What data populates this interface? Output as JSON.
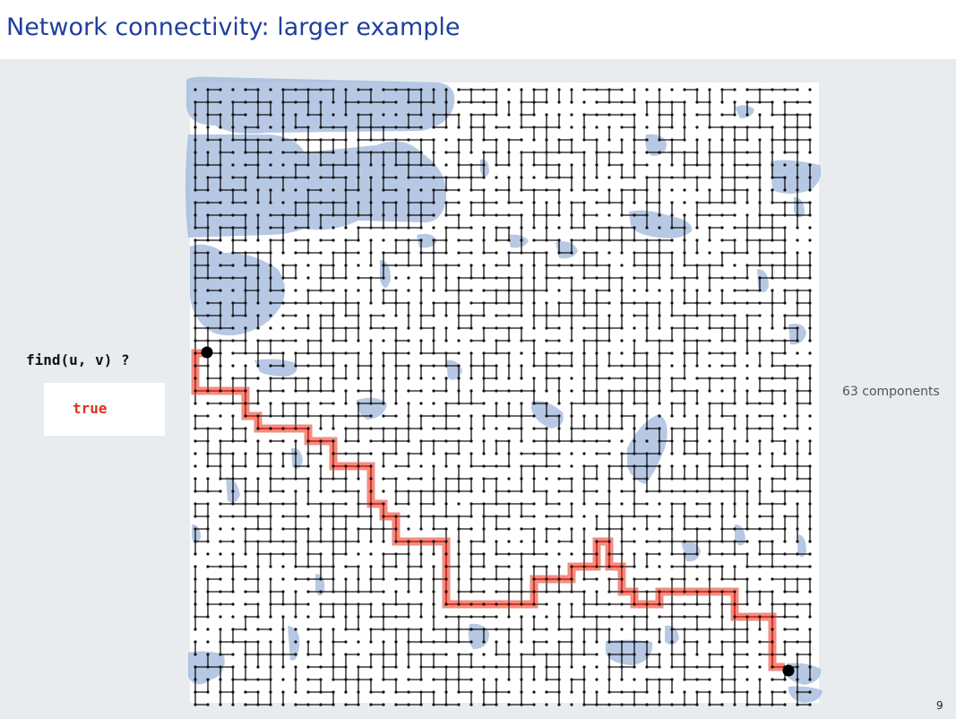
{
  "slide": {
    "title": "Network connectivity: larger example",
    "page_number": "9"
  },
  "query": {
    "label": "find(u, v)  ?",
    "answer": "true"
  },
  "graph": {
    "component_count_label": "63 components",
    "node_color": "#111111",
    "edge_color": "#111111",
    "component_highlight_color": "#9eb6db",
    "path_color": "#e0301e",
    "endpoint_color": "#000000"
  }
}
